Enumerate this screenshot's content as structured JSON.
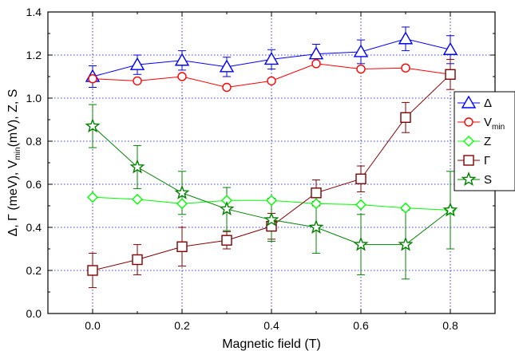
{
  "chart_data": {
    "type": "line",
    "xlabel": "Magnetic field (T)",
    "ylabel": {
      "parts": [
        "Δ, Γ (meV), V",
        "min",
        "(mV), Z, S"
      ]
    },
    "xlim": [
      -0.1,
      0.9
    ],
    "ylim": [
      0.0,
      1.4
    ],
    "xticks": [
      "0.0",
      "0.2",
      "0.4",
      "0.6",
      "0.8"
    ],
    "xtick_values": [
      0.0,
      0.2,
      0.4,
      0.6,
      0.8
    ],
    "yticks": [
      "0.0",
      "0.2",
      "0.4",
      "0.6",
      "0.8",
      "1.0",
      "1.2",
      "1.4"
    ],
    "ytick_values": [
      0.0,
      0.2,
      0.4,
      0.6,
      0.8,
      1.0,
      1.2,
      1.4
    ],
    "grid": true,
    "legend_position": "right",
    "x": [
      0.0,
      0.1,
      0.2,
      0.3,
      0.4,
      0.5,
      0.6,
      0.7,
      0.8
    ],
    "series": [
      {
        "name": "Δ",
        "marker": "triangle",
        "color": "#0000ff",
        "values": [
          1.1,
          1.155,
          1.175,
          1.145,
          1.18,
          1.205,
          1.215,
          1.275,
          1.225
        ],
        "errors": [
          0.05,
          0.045,
          0.045,
          0.045,
          0.045,
          0.045,
          0.055,
          0.055,
          0.065
        ]
      },
      {
        "name": "V",
        "name_sub": "min",
        "marker": "circle",
        "color": "#ff0000",
        "values": [
          1.09,
          1.08,
          1.1,
          1.05,
          1.08,
          1.16,
          1.135,
          1.14,
          1.11
        ],
        "errors": null
      },
      {
        "name": "Z",
        "marker": "diamond",
        "color": "#00ff00",
        "values": [
          0.54,
          0.53,
          0.51,
          0.525,
          0.525,
          0.51,
          0.505,
          0.49,
          0.48
        ],
        "errors": null
      },
      {
        "name": "Γ",
        "marker": "square",
        "color": "#800000",
        "values": [
          0.2,
          0.25,
          0.31,
          0.34,
          0.405,
          0.56,
          0.625,
          0.91,
          1.11
        ],
        "errors": [
          0.08,
          0.07,
          0.09,
          0.04,
          0.06,
          0.06,
          0.06,
          0.07,
          0.07
        ]
      },
      {
        "name": "S",
        "marker": "star",
        "color": "#008000",
        "values": [
          0.87,
          0.68,
          0.56,
          0.485,
          0.435,
          0.4,
          0.32,
          0.32,
          0.48
        ],
        "errors": [
          0.1,
          0.1,
          0.1,
          0.1,
          0.1,
          0.12,
          0.14,
          0.16,
          0.18
        ]
      }
    ]
  }
}
